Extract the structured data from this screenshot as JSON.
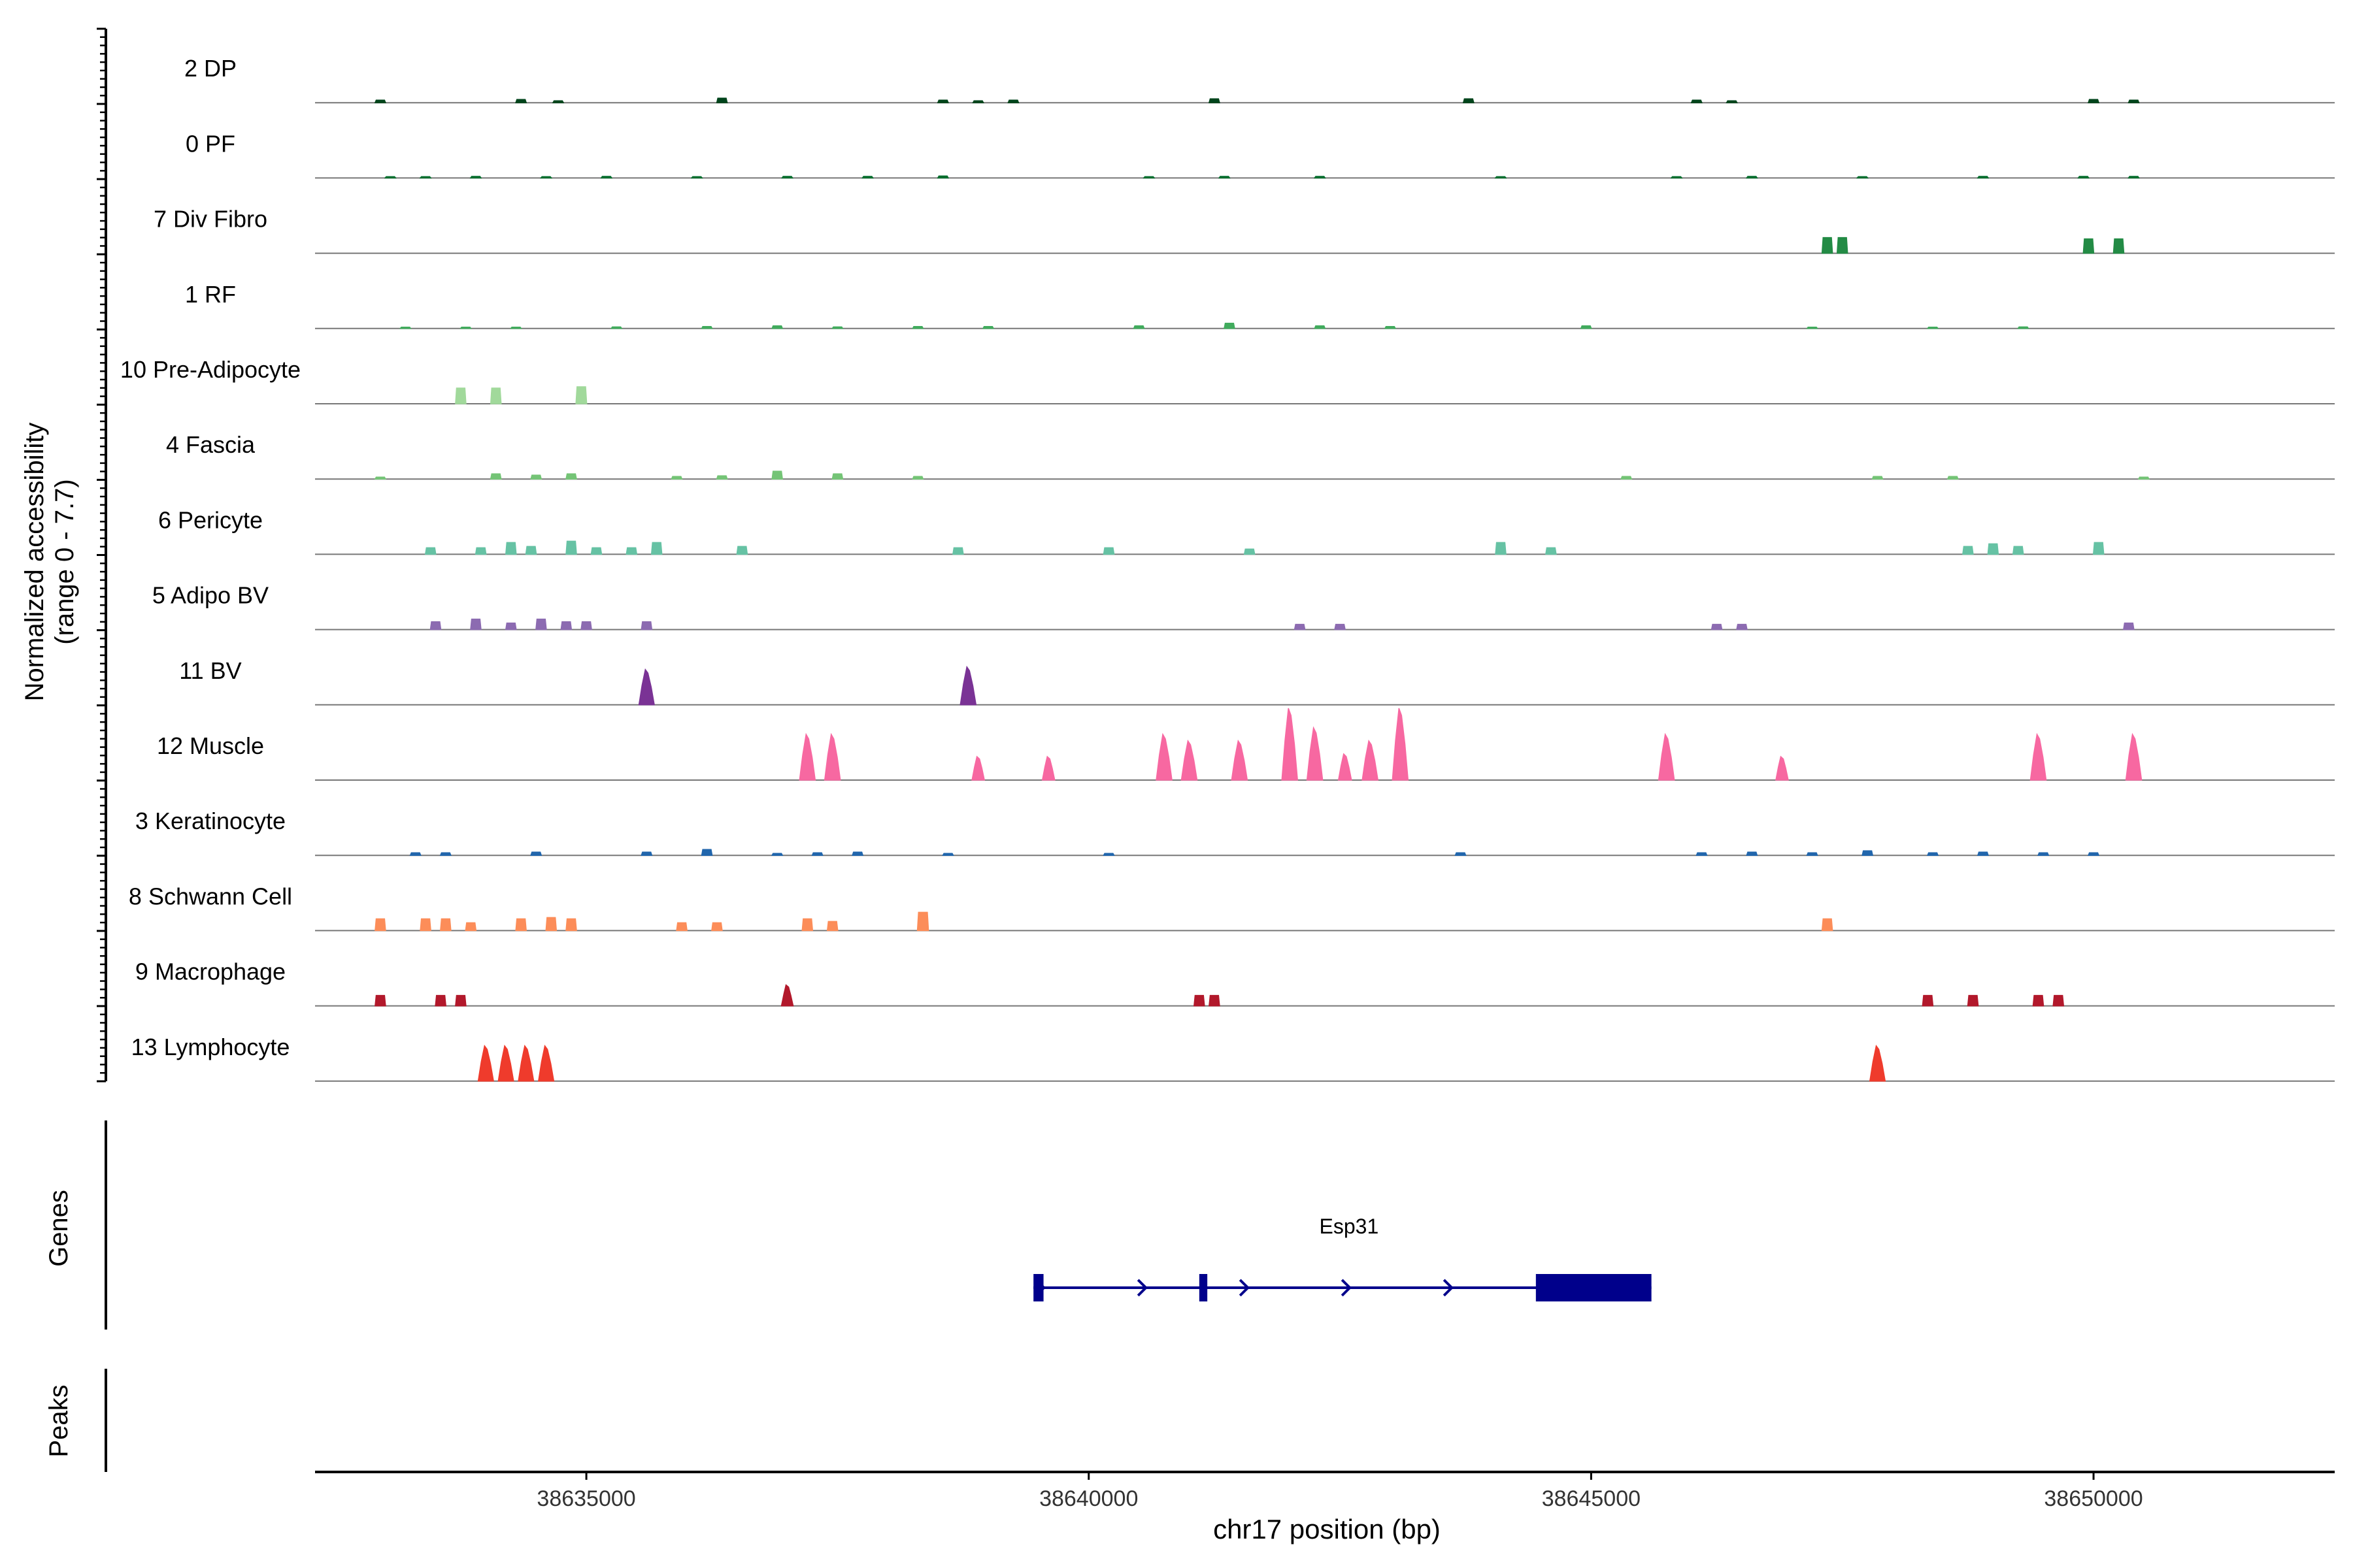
{
  "chart_data": {
    "type": "coverage",
    "title": "",
    "region": {
      "chromosome": "chr17",
      "start": 38632300,
      "end": 38652400
    },
    "ylabel": "Normalized accessibility",
    "ylabel_range": "(range 0 - 7.7)",
    "xlabel": "chr17 position (bp)",
    "ylim": [
      0,
      7.7
    ],
    "x_ticks": [
      {
        "value": 38635000,
        "label": "38635000"
      },
      {
        "value": 38640000,
        "label": "38640000"
      },
      {
        "value": 38645000,
        "label": "38645000"
      },
      {
        "value": 38650000,
        "label": "38650000"
      }
    ],
    "tracks": [
      {
        "name": "2 DP",
        "color": "#00441b",
        "peaks": [
          [
            38632.95,
            0.2
          ],
          [
            38634.35,
            0.25
          ],
          [
            38634.72,
            0.15
          ],
          [
            38636.35,
            0.35
          ],
          [
            38638.55,
            0.2
          ],
          [
            38638.9,
            0.15
          ],
          [
            38639.25,
            0.2
          ],
          [
            38641.25,
            0.3
          ],
          [
            38643.78,
            0.3
          ],
          [
            38646.05,
            0.2
          ],
          [
            38646.4,
            0.15
          ],
          [
            38650.0,
            0.25
          ],
          [
            38650.4,
            0.2
          ]
        ]
      },
      {
        "name": "0 PF",
        "color": "#006d2c",
        "peaks": [
          [
            38633.05,
            0.1
          ],
          [
            38633.4,
            0.1
          ],
          [
            38633.9,
            0.12
          ],
          [
            38634.6,
            0.1
          ],
          [
            38635.2,
            0.12
          ],
          [
            38636.1,
            0.1
          ],
          [
            38637.0,
            0.12
          ],
          [
            38637.8,
            0.12
          ],
          [
            38638.55,
            0.15
          ],
          [
            38640.6,
            0.1
          ],
          [
            38641.35,
            0.12
          ],
          [
            38642.3,
            0.12
          ],
          [
            38644.1,
            0.1
          ],
          [
            38645.85,
            0.1
          ],
          [
            38646.6,
            0.12
          ],
          [
            38647.7,
            0.1
          ],
          [
            38648.9,
            0.12
          ],
          [
            38649.9,
            0.12
          ],
          [
            38650.4,
            0.12
          ]
        ]
      },
      {
        "name": "7 Div Fibro",
        "color": "#238b45",
        "peaks": [
          [
            38647.35,
            1.2
          ],
          [
            38647.5,
            1.2
          ],
          [
            38649.95,
            1.1
          ],
          [
            38650.25,
            1.1
          ]
        ]
      },
      {
        "name": "1 RF",
        "color": "#41ab5d",
        "peaks": [
          [
            38633.2,
            0.1
          ],
          [
            38633.8,
            0.1
          ],
          [
            38634.3,
            0.1
          ],
          [
            38635.3,
            0.12
          ],
          [
            38636.2,
            0.15
          ],
          [
            38636.9,
            0.2
          ],
          [
            38637.5,
            0.12
          ],
          [
            38638.3,
            0.15
          ],
          [
            38639.0,
            0.15
          ],
          [
            38640.5,
            0.2
          ],
          [
            38641.4,
            0.4
          ],
          [
            38642.3,
            0.2
          ],
          [
            38643.0,
            0.15
          ],
          [
            38644.95,
            0.2
          ],
          [
            38647.2,
            0.1
          ],
          [
            38648.4,
            0.1
          ],
          [
            38649.3,
            0.12
          ]
        ]
      },
      {
        "name": "10 Pre-Adipocyte",
        "color": "#a1d99b",
        "peaks": [
          [
            38633.75,
            1.2
          ],
          [
            38634.1,
            1.2
          ],
          [
            38634.95,
            1.3
          ]
        ]
      },
      {
        "name": "4 Fascia",
        "color": "#74c476",
        "peaks": [
          [
            38632.95,
            0.15
          ],
          [
            38634.1,
            0.4
          ],
          [
            38634.5,
            0.3
          ],
          [
            38634.85,
            0.4
          ],
          [
            38635.9,
            0.2
          ],
          [
            38636.35,
            0.25
          ],
          [
            38636.9,
            0.6
          ],
          [
            38637.5,
            0.4
          ],
          [
            38638.3,
            0.2
          ],
          [
            38645.35,
            0.2
          ],
          [
            38647.85,
            0.2
          ],
          [
            38648.6,
            0.2
          ],
          [
            38650.5,
            0.15
          ]
        ]
      },
      {
        "name": "6 Pericyte",
        "color": "#66c2a4",
        "peaks": [
          [
            38633.45,
            0.5
          ],
          [
            38633.95,
            0.5
          ],
          [
            38634.25,
            0.9
          ],
          [
            38634.45,
            0.6
          ],
          [
            38634.85,
            1.0
          ],
          [
            38635.1,
            0.5
          ],
          [
            38635.45,
            0.5
          ],
          [
            38635.7,
            0.9
          ],
          [
            38636.55,
            0.6
          ],
          [
            38638.7,
            0.5
          ],
          [
            38640.2,
            0.5
          ],
          [
            38641.6,
            0.4
          ],
          [
            38644.1,
            0.9
          ],
          [
            38644.6,
            0.5
          ],
          [
            38648.75,
            0.6
          ],
          [
            38649.0,
            0.8
          ],
          [
            38649.25,
            0.6
          ],
          [
            38650.05,
            0.9
          ]
        ]
      },
      {
        "name": "5 Adipo BV",
        "color": "#8c6bb1",
        "peaks": [
          [
            38633.5,
            0.6
          ],
          [
            38633.9,
            0.8
          ],
          [
            38634.25,
            0.5
          ],
          [
            38634.55,
            0.8
          ],
          [
            38634.8,
            0.6
          ],
          [
            38635.0,
            0.6
          ],
          [
            38635.6,
            0.6
          ],
          [
            38642.1,
            0.4
          ],
          [
            38642.5,
            0.4
          ],
          [
            38646.25,
            0.4
          ],
          [
            38646.5,
            0.4
          ],
          [
            38650.35,
            0.5
          ]
        ]
      },
      {
        "name": "11 BV",
        "color": "#7a3395",
        "peaks": [
          [
            38635.6,
            2.7
          ],
          [
            38638.8,
            2.9
          ]
        ]
      },
      {
        "name": "12 Muscle",
        "color": "#f768a1",
        "peaks": [
          [
            38637.2,
            3.5
          ],
          [
            38637.45,
            3.5
          ],
          [
            38638.9,
            1.8
          ],
          [
            38639.6,
            1.8
          ],
          [
            38640.75,
            3.5
          ],
          [
            38641.0,
            3.0
          ],
          [
            38641.5,
            3.0
          ],
          [
            38642.0,
            5.5
          ],
          [
            38642.25,
            4.0
          ],
          [
            38642.55,
            2.0
          ],
          [
            38642.8,
            3.0
          ],
          [
            38643.1,
            5.5
          ],
          [
            38645.75,
            3.5
          ],
          [
            38646.9,
            1.8
          ],
          [
            38649.45,
            3.5
          ],
          [
            38650.4,
            3.5
          ]
        ]
      },
      {
        "name": "3 Keratinocyte",
        "color": "#2166ac",
        "peaks": [
          [
            38633.3,
            0.2
          ],
          [
            38633.6,
            0.2
          ],
          [
            38634.5,
            0.25
          ],
          [
            38635.6,
            0.25
          ],
          [
            38636.2,
            0.45
          ],
          [
            38636.9,
            0.15
          ],
          [
            38637.3,
            0.2
          ],
          [
            38637.7,
            0.25
          ],
          [
            38638.6,
            0.15
          ],
          [
            38640.2,
            0.15
          ],
          [
            38643.7,
            0.2
          ],
          [
            38646.1,
            0.2
          ],
          [
            38646.6,
            0.25
          ],
          [
            38647.2,
            0.2
          ],
          [
            38647.75,
            0.35
          ],
          [
            38648.4,
            0.2
          ],
          [
            38648.9,
            0.25
          ],
          [
            38649.5,
            0.2
          ],
          [
            38650.0,
            0.2
          ]
        ]
      },
      {
        "name": "8 Schwann Cell",
        "color": "#fc8d59",
        "peaks": [
          [
            38632.95,
            0.9
          ],
          [
            38633.4,
            0.9
          ],
          [
            38633.6,
            0.9
          ],
          [
            38633.85,
            0.6
          ],
          [
            38634.35,
            0.9
          ],
          [
            38634.65,
            1.0
          ],
          [
            38634.85,
            0.9
          ],
          [
            38635.95,
            0.6
          ],
          [
            38636.3,
            0.6
          ],
          [
            38637.2,
            0.9
          ],
          [
            38637.45,
            0.7
          ],
          [
            38638.35,
            1.4
          ],
          [
            38647.35,
            0.9
          ]
        ]
      },
      {
        "name": "9 Macrophage",
        "color": "#b2182b",
        "peaks": [
          [
            38632.95,
            0.8
          ],
          [
            38633.55,
            0.8
          ],
          [
            38633.75,
            0.8
          ],
          [
            38637.0,
            1.6
          ],
          [
            38641.1,
            0.8
          ],
          [
            38641.25,
            0.8
          ],
          [
            38648.35,
            0.8
          ],
          [
            38648.8,
            0.8
          ],
          [
            38649.45,
            0.8
          ],
          [
            38649.65,
            0.8
          ]
        ]
      },
      {
        "name": "13 Lymphocyte",
        "color": "#ef3b2c",
        "peaks": [
          [
            38634.0,
            2.7
          ],
          [
            38634.2,
            2.7
          ],
          [
            38634.4,
            2.7
          ],
          [
            38634.6,
            2.7
          ],
          [
            38647.85,
            2.7
          ]
        ]
      }
    ],
    "genes": {
      "label": "Genes",
      "items": [
        {
          "name": "Esp31",
          "start": 38639.45,
          "end": 38645.6,
          "strand": "+",
          "exons": [
            [
              38639.45,
              38639.55
            ],
            [
              38641.1,
              38641.18
            ],
            [
              38644.45,
              38645.6
            ]
          ],
          "color": "#00008b"
        }
      ]
    },
    "peaks_track": {
      "label": "Peaks",
      "items": []
    }
  }
}
